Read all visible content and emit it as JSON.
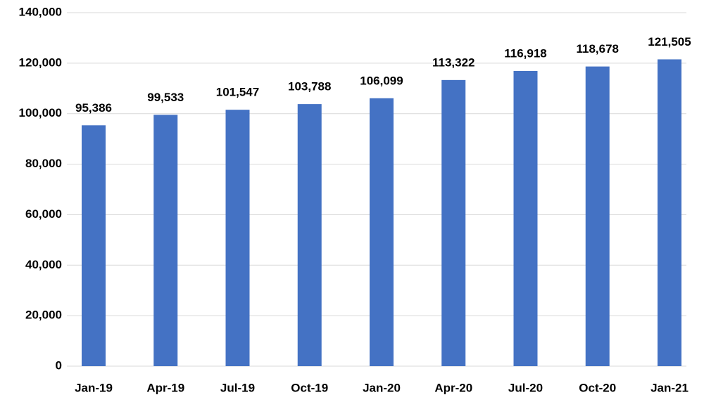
{
  "chart_data": {
    "type": "bar",
    "categories": [
      "Jan-19",
      "Apr-19",
      "Jul-19",
      "Oct-19",
      "Jan-20",
      "Apr-20",
      "Jul-20",
      "Oct-20",
      "Jan-21"
    ],
    "values": [
      95386,
      99533,
      101547,
      103788,
      106099,
      113322,
      116918,
      118678,
      121505
    ],
    "value_labels": [
      "95,386",
      "99,533",
      "101,547",
      "103,788",
      "106,099",
      "113,322",
      "116,918",
      "118,678",
      "121,505"
    ],
    "color": "#4472c4",
    "ylim": [
      0,
      140000
    ],
    "yticks": [
      0,
      {
        "value": 20000,
        "label": "20,000"
      },
      {
        "value": 40000,
        "label": "40,000"
      },
      {
        "value": 60000,
        "label": "60,000"
      },
      {
        "value": 80000,
        "label": "80,000"
      },
      {
        "value": 100000,
        "label": "100,000"
      },
      {
        "value": 120000,
        "label": "120,000"
      },
      {
        "value": 140000,
        "label": "140,000"
      }
    ],
    "grid": true
  }
}
